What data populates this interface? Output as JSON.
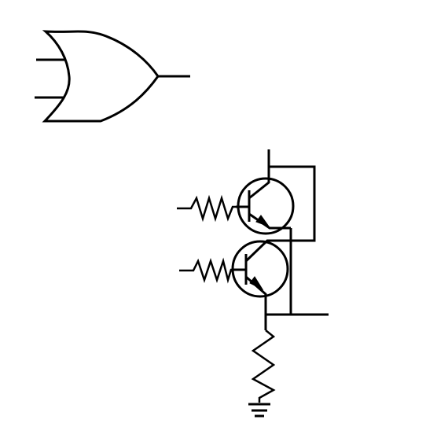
{
  "diagram": {
    "components": [
      {
        "kind": "or-gate",
        "inputs": 2,
        "outputs": 1
      },
      {
        "kind": "npn-transistor",
        "count": 2,
        "configuration": "parallel"
      },
      {
        "kind": "resistor",
        "count": 3
      },
      {
        "kind": "ground",
        "count": 1
      }
    ],
    "colors": {
      "line": "#000000",
      "background": "#ffffff"
    }
  }
}
